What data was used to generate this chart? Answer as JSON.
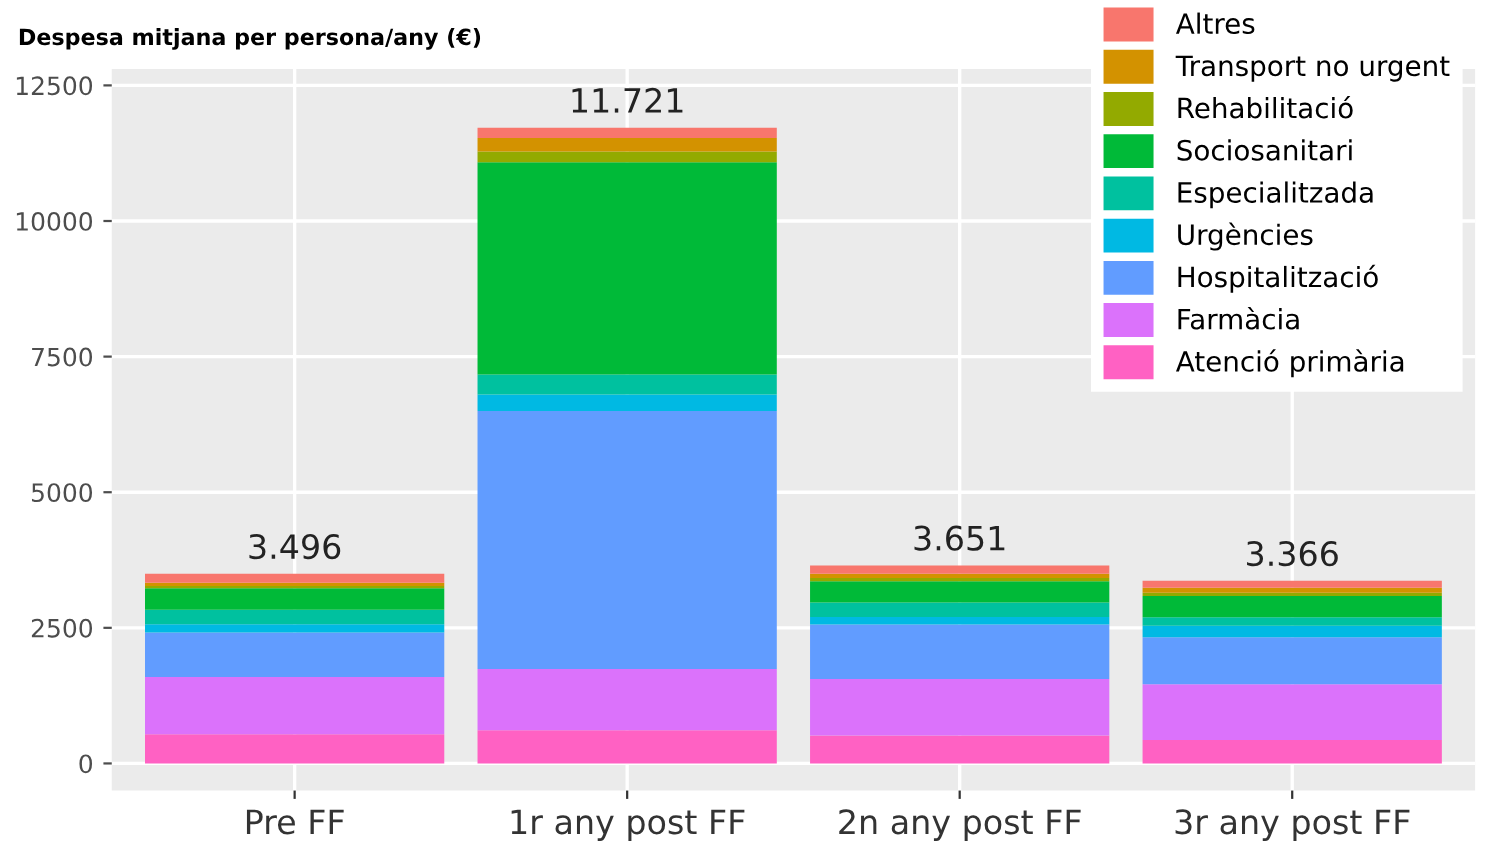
{
  "chart_data": {
    "type": "bar",
    "stacked": true,
    "title": "Despesa mitjana per persona/any (€)",
    "categories": [
      "Pre FF",
      "1r any post FF",
      "2n any post FF",
      "3r any post FF"
    ],
    "series": [
      {
        "name": "Atenció primària",
        "color": "#ff61c3",
        "values": [
          540,
          614,
          515,
          430
        ]
      },
      {
        "name": "Farmàcia",
        "color": "#db72fb",
        "values": [
          1053,
          1126,
          1041,
          1029
        ]
      },
      {
        "name": "Hospitalització",
        "color": "#619cff",
        "values": [
          822,
          4756,
          1005,
          869
        ]
      },
      {
        "name": "Urgències",
        "color": "#00b9e3",
        "values": [
          150,
          305,
          140,
          209
        ]
      },
      {
        "name": "Especialitzada",
        "color": "#00c19f",
        "values": [
          270,
          368,
          265,
          159
        ]
      },
      {
        "name": "Sociosanitari",
        "color": "#00ba38",
        "values": [
          395,
          3912,
          392,
          392
        ]
      },
      {
        "name": "Rehabilitació",
        "color": "#93aa00",
        "values": [
          40,
          200,
          60,
          60
        ]
      },
      {
        "name": "Transport no urgent",
        "color": "#d39200",
        "values": [
          60,
          250,
          80,
          90
        ]
      },
      {
        "name": "Altres",
        "color": "#f8766d",
        "values": [
          166,
          190,
          153,
          128
        ]
      }
    ],
    "totals": [
      "3.496",
      "11.721",
      "3.651",
      "3.366"
    ],
    "ylim": [
      -500,
      12800
    ],
    "yticks": [
      0,
      2500,
      5000,
      7500,
      10000,
      12500
    ],
    "grid": true,
    "legend": "top right"
  }
}
